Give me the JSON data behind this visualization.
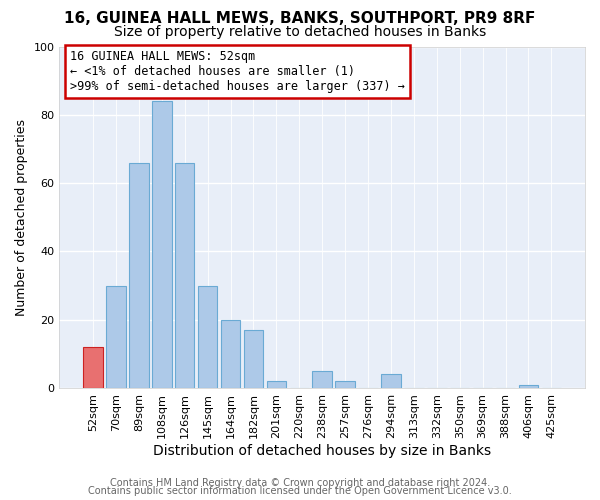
{
  "title1": "16, GUINEA HALL MEWS, BANKS, SOUTHPORT, PR9 8RF",
  "title2": "Size of property relative to detached houses in Banks",
  "xlabel": "Distribution of detached houses by size in Banks",
  "ylabel": "Number of detached properties",
  "bar_labels": [
    "52sqm",
    "70sqm",
    "89sqm",
    "108sqm",
    "126sqm",
    "145sqm",
    "164sqm",
    "182sqm",
    "201sqm",
    "220sqm",
    "238sqm",
    "257sqm",
    "276sqm",
    "294sqm",
    "313sqm",
    "332sqm",
    "350sqm",
    "369sqm",
    "388sqm",
    "406sqm",
    "425sqm"
  ],
  "bar_heights": [
    12,
    30,
    66,
    84,
    66,
    30,
    20,
    17,
    2,
    0,
    5,
    2,
    0,
    4,
    0,
    0,
    0,
    0,
    0,
    1,
    0
  ],
  "bar_color": "#adc9e8",
  "bar_edge_color": "#6aaad4",
  "highlight_bar_index": 0,
  "highlight_bar_color": "#e87070",
  "highlight_bar_edge_color": "#cc2222",
  "ylim": [
    0,
    100
  ],
  "yticks": [
    0,
    20,
    40,
    60,
    80,
    100
  ],
  "annotation_line1": "16 GUINEA HALL MEWS: 52sqm",
  "annotation_line2": "← <1% of detached houses are smaller (1)",
  "annotation_line3": ">99% of semi-detached houses are larger (337) →",
  "annotation_box_color": "#ffffff",
  "annotation_box_edge_color": "#cc0000",
  "footnote1": "Contains HM Land Registry data © Crown copyright and database right 2024.",
  "footnote2": "Contains public sector information licensed under the Open Government Licence v3.0.",
  "fig_background_color": "#ffffff",
  "plot_background_color": "#e8eef8",
  "grid_color": "#ffffff",
  "title1_fontsize": 11,
  "title2_fontsize": 10,
  "xlabel_fontsize": 10,
  "ylabel_fontsize": 9,
  "tick_fontsize": 8,
  "annotation_fontsize": 8.5,
  "footnote_fontsize": 7
}
